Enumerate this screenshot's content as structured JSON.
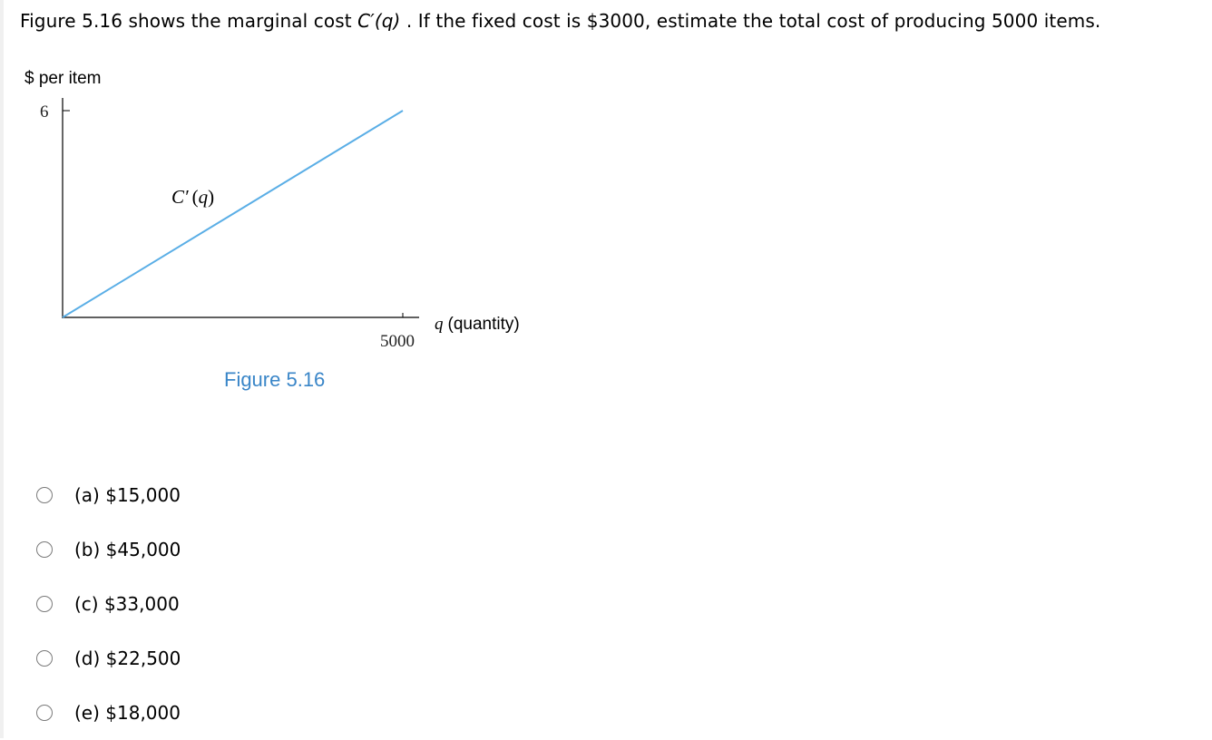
{
  "question": {
    "text_before": "Figure 5.16 shows the marginal cost ",
    "function_name": "C′(",
    "function_var": "q",
    "function_close": ")",
    "text_after": " . If the fixed cost is $3000, estimate the total cost of producing 5000 items."
  },
  "figure": {
    "caption": "Figure 5.16",
    "curve_label_name": "C′",
    "curve_label_var": "q",
    "colors": {
      "line": "#5aaee6",
      "caption": "#3a86c8",
      "axis": "#000000"
    }
  },
  "chart_data": {
    "type": "line",
    "title": "",
    "ylabel": "$ per item",
    "xlabel_var": "q",
    "xlabel_text": "(quantity)",
    "x_ticks": [
      "5000"
    ],
    "y_ticks": [
      "6"
    ],
    "xlim": [
      0,
      5000
    ],
    "ylim": [
      0,
      6
    ],
    "series": [
      {
        "x": [
          0,
          5000
        ],
        "values": [
          0,
          6
        ]
      }
    ]
  },
  "options": [
    {
      "label": "(a) $15,000"
    },
    {
      "label": "(b) $45,000"
    },
    {
      "label": "(c) $33,000"
    },
    {
      "label": "(d) $22,500"
    },
    {
      "label": "(e) $18,000"
    }
  ]
}
